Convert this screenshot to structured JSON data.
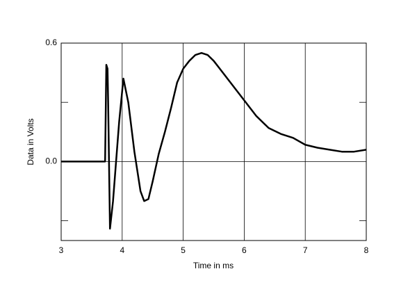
{
  "chart_data": {
    "type": "line",
    "x_label": "Time in ms",
    "y_label": "Data in Volts",
    "xlim": [
      3,
      8
    ],
    "ylim": [
      -0.4,
      0.6
    ],
    "xticks": [
      3,
      4,
      5,
      6,
      7,
      8
    ],
    "yticks": [
      {
        "value": 0,
        "label": "0.0"
      },
      0.6
    ],
    "yminor_ticks": [
      -0.3,
      0.3
    ],
    "grid": true,
    "series": [
      {
        "color": "#000000",
        "x": [
          3,
          3.72,
          3.74,
          3.76,
          3.77,
          3.8,
          3.85,
          3.9,
          3.95,
          4.02,
          4.1,
          4.2,
          4.3,
          4.36,
          4.43,
          4.5,
          4.6,
          4.7,
          4.8,
          4.9,
          5.0,
          5.1,
          5.2,
          5.3,
          5.4,
          5.5,
          5.6,
          5.7,
          5.8,
          5.9,
          6.0,
          6.2,
          6.4,
          6.6,
          6.8,
          7.0,
          7.2,
          7.4,
          7.6,
          7.8,
          8.0
        ],
        "values": [
          0,
          0,
          0.49,
          0.47,
          0.3,
          -0.34,
          -0.2,
          0.0,
          0.2,
          0.42,
          0.3,
          0.05,
          -0.15,
          -0.2,
          -0.19,
          -0.1,
          0.04,
          0.15,
          0.27,
          0.4,
          0.47,
          0.51,
          0.54,
          0.55,
          0.54,
          0.51,
          0.47,
          0.43,
          0.39,
          0.35,
          0.31,
          0.23,
          0.17,
          0.14,
          0.12,
          0.085,
          0.07,
          0.06,
          0.05,
          0.05,
          0.06
        ]
      }
    ]
  }
}
